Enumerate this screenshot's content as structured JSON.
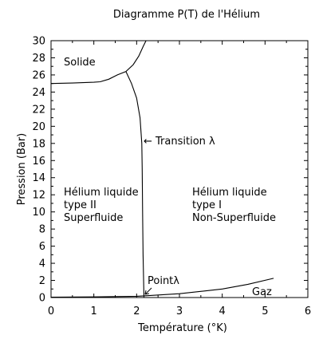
{
  "chart_data": {
    "type": "line",
    "title": "Diagramme P(T) de l'Hélium",
    "xlabel": "Température (°K)",
    "ylabel": "Pression (Bar)",
    "xlim": [
      0,
      6
    ],
    "ylim": [
      0,
      30
    ],
    "x_ticks": [
      "0",
      "1",
      "2",
      "3",
      "4",
      "5",
      "6"
    ],
    "y_ticks": [
      "0",
      "2",
      "4",
      "6",
      "8",
      "10",
      "12",
      "14",
      "16",
      "18",
      "20",
      "22",
      "24",
      "26",
      "28",
      "30"
    ],
    "grid": false,
    "series": [
      {
        "values": [
          {
            "x": 0.0,
            "y": 25.0
          },
          {
            "x": 0.5,
            "y": 25.05
          },
          {
            "x": 1.0,
            "y": 25.15
          },
          {
            "x": 1.15,
            "y": 25.2
          },
          {
            "x": 1.35,
            "y": 25.5
          },
          {
            "x": 1.55,
            "y": 26.0
          },
          {
            "x": 1.75,
            "y": 26.4
          },
          {
            "x": 1.92,
            "y": 27.2
          },
          {
            "x": 2.05,
            "y": 28.2
          },
          {
            "x": 2.15,
            "y": 29.3
          },
          {
            "x": 2.22,
            "y": 30.0
          }
        ]
      },
      {
        "values": [
          {
            "x": 1.75,
            "y": 26.4
          },
          {
            "x": 1.88,
            "y": 25.0
          },
          {
            "x": 2.0,
            "y": 23.3
          },
          {
            "x": 2.08,
            "y": 21.0
          },
          {
            "x": 2.12,
            "y": 18.0
          },
          {
            "x": 2.13,
            "y": 15.0
          },
          {
            "x": 2.14,
            "y": 10.0
          },
          {
            "x": 2.15,
            "y": 5.0
          },
          {
            "x": 2.17,
            "y": 0.05
          }
        ]
      },
      {
        "values": [
          {
            "x": 0.0,
            "y": 0.05
          },
          {
            "x": 1.0,
            "y": 0.07
          },
          {
            "x": 2.0,
            "y": 0.15
          },
          {
            "x": 2.17,
            "y": 0.2
          },
          {
            "x": 3.0,
            "y": 0.45
          },
          {
            "x": 4.0,
            "y": 1.0
          },
          {
            "x": 4.6,
            "y": 1.55
          },
          {
            "x": 5.2,
            "y": 2.25
          }
        ]
      }
    ],
    "annotations": {
      "solide": "Solide",
      "transition": "← Transition λ",
      "he2_line1": "Hélium liquide",
      "he2_line2": "type II",
      "he2_line3": "Superfluide",
      "he1_line1": "Hélium liquide",
      "he1_line2": "type I",
      "he1_line3": "Non-Superfluide",
      "point": "Pointλ",
      "gaz": "Gaz"
    },
    "point_lambda": {
      "x": 2.17,
      "y": 0.05
    }
  }
}
